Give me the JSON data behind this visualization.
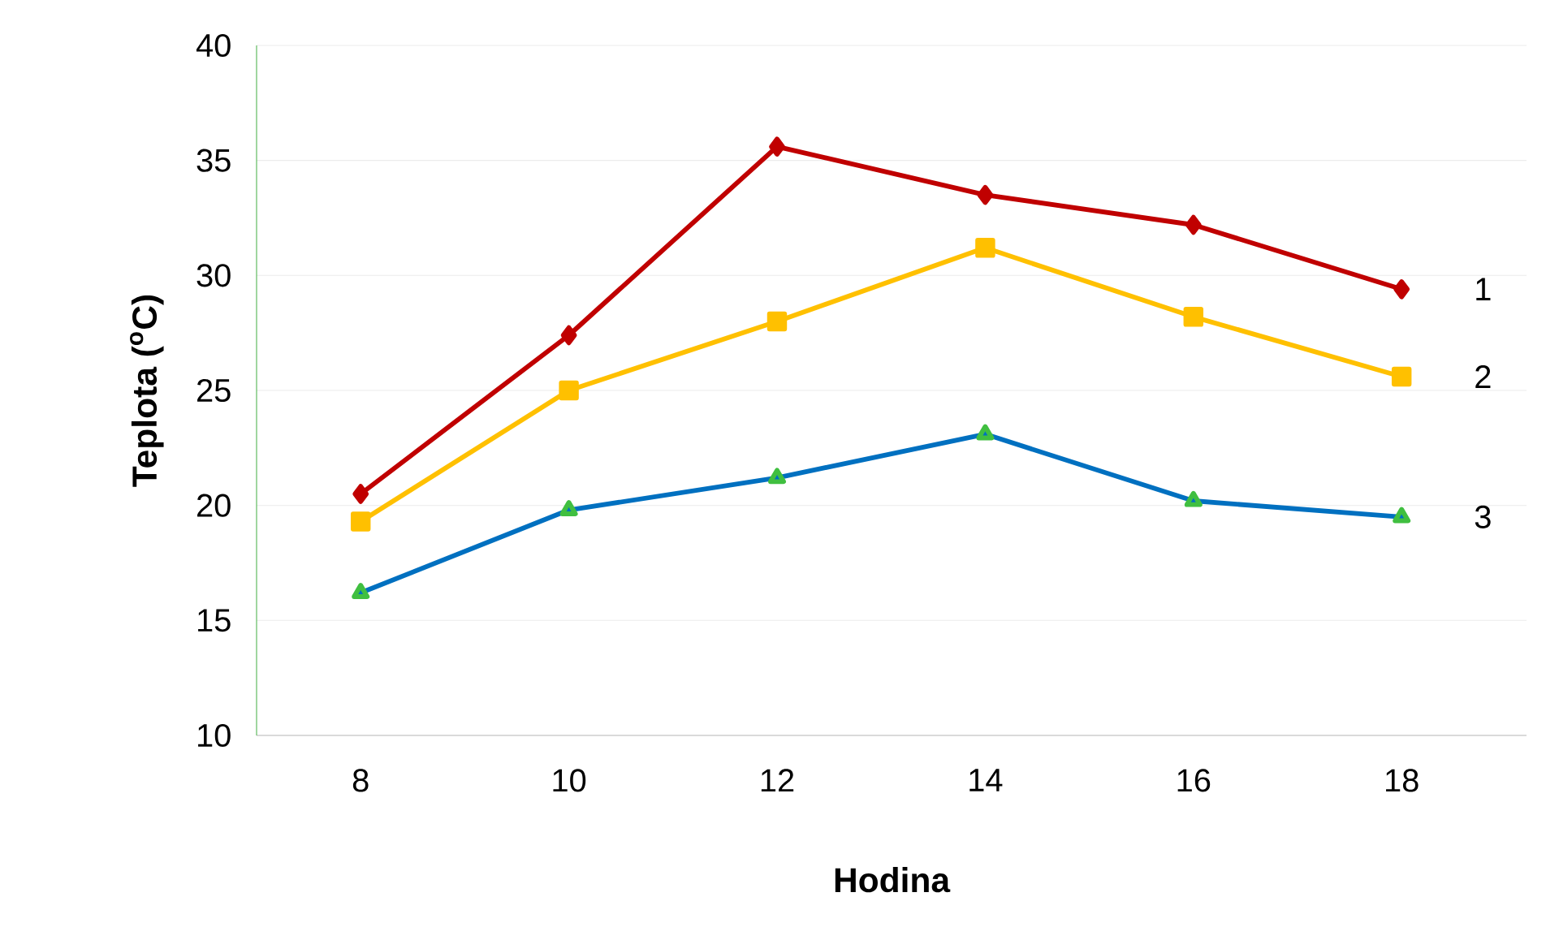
{
  "chart_data": {
    "type": "line",
    "xlabel": "Hodina",
    "ylabel": "Teplota ($^{o}$C)",
    "x": [
      8,
      10,
      12,
      14,
      16,
      18
    ],
    "series": [
      {
        "name": "1",
        "color": "#c00000",
        "marker": "diamond",
        "values": [
          20.5,
          27.4,
          35.6,
          33.5,
          32.2,
          29.4
        ]
      },
      {
        "name": "2",
        "color": "#ffc000",
        "marker": "square",
        "values": [
          19.3,
          25.0,
          28.0,
          31.2,
          28.2,
          25.6
        ]
      },
      {
        "name": "3",
        "color": "#0070c0",
        "marker": "triangle",
        "values": [
          16.2,
          19.8,
          21.2,
          23.1,
          20.2,
          19.5
        ]
      }
    ],
    "xlim": [
      7,
      19.2
    ],
    "xticks": [
      8,
      10,
      12,
      14,
      16,
      18
    ],
    "ylim": [
      10,
      40
    ],
    "yticks": [
      10,
      15,
      20,
      25,
      30,
      35,
      40
    ],
    "grid": "y",
    "line_style": "solid"
  }
}
